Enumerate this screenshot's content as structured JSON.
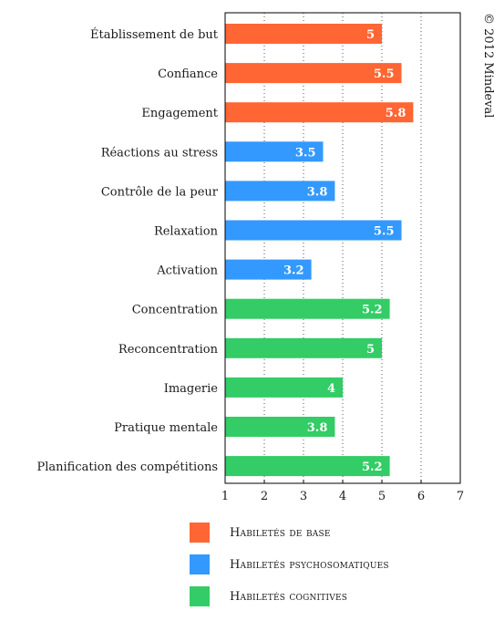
{
  "copyright": "© 2012 Mindeval",
  "legend": [
    {
      "label": "Habiletés de base",
      "color": "#ff6633"
    },
    {
      "label": "Habiletés psychosomatiques",
      "color": "#3399ff"
    },
    {
      "label": "Habiletés cognitives",
      "color": "#33cc66"
    }
  ],
  "chart_data": {
    "type": "bar",
    "orientation": "horizontal",
    "xlim": [
      1,
      7
    ],
    "x_ticks": [
      1,
      2,
      3,
      4,
      5,
      6,
      7
    ],
    "grid": "vertical dotted",
    "legend_position": "bottom",
    "categories": [
      "Établissement de but",
      "Confiance",
      "Engagement",
      "Réactions au stress",
      "Contrôle de la peur",
      "Relaxation",
      "Activation",
      "Concentration",
      "Reconcentration",
      "Imagerie",
      "Pratique mentale",
      "Planification des compétitions"
    ],
    "values": [
      5,
      5.5,
      5.8,
      3.5,
      3.8,
      5.5,
      3.2,
      5.2,
      5,
      4,
      3.8,
      5.2
    ],
    "value_labels": [
      "5",
      "5.5",
      "5.8",
      "3.5",
      "3.8",
      "5.5",
      "3.2",
      "5.2",
      "5",
      "4",
      "3.8",
      "5.2"
    ],
    "groups": [
      0,
      0,
      0,
      1,
      1,
      1,
      1,
      2,
      2,
      2,
      2,
      2
    ]
  }
}
